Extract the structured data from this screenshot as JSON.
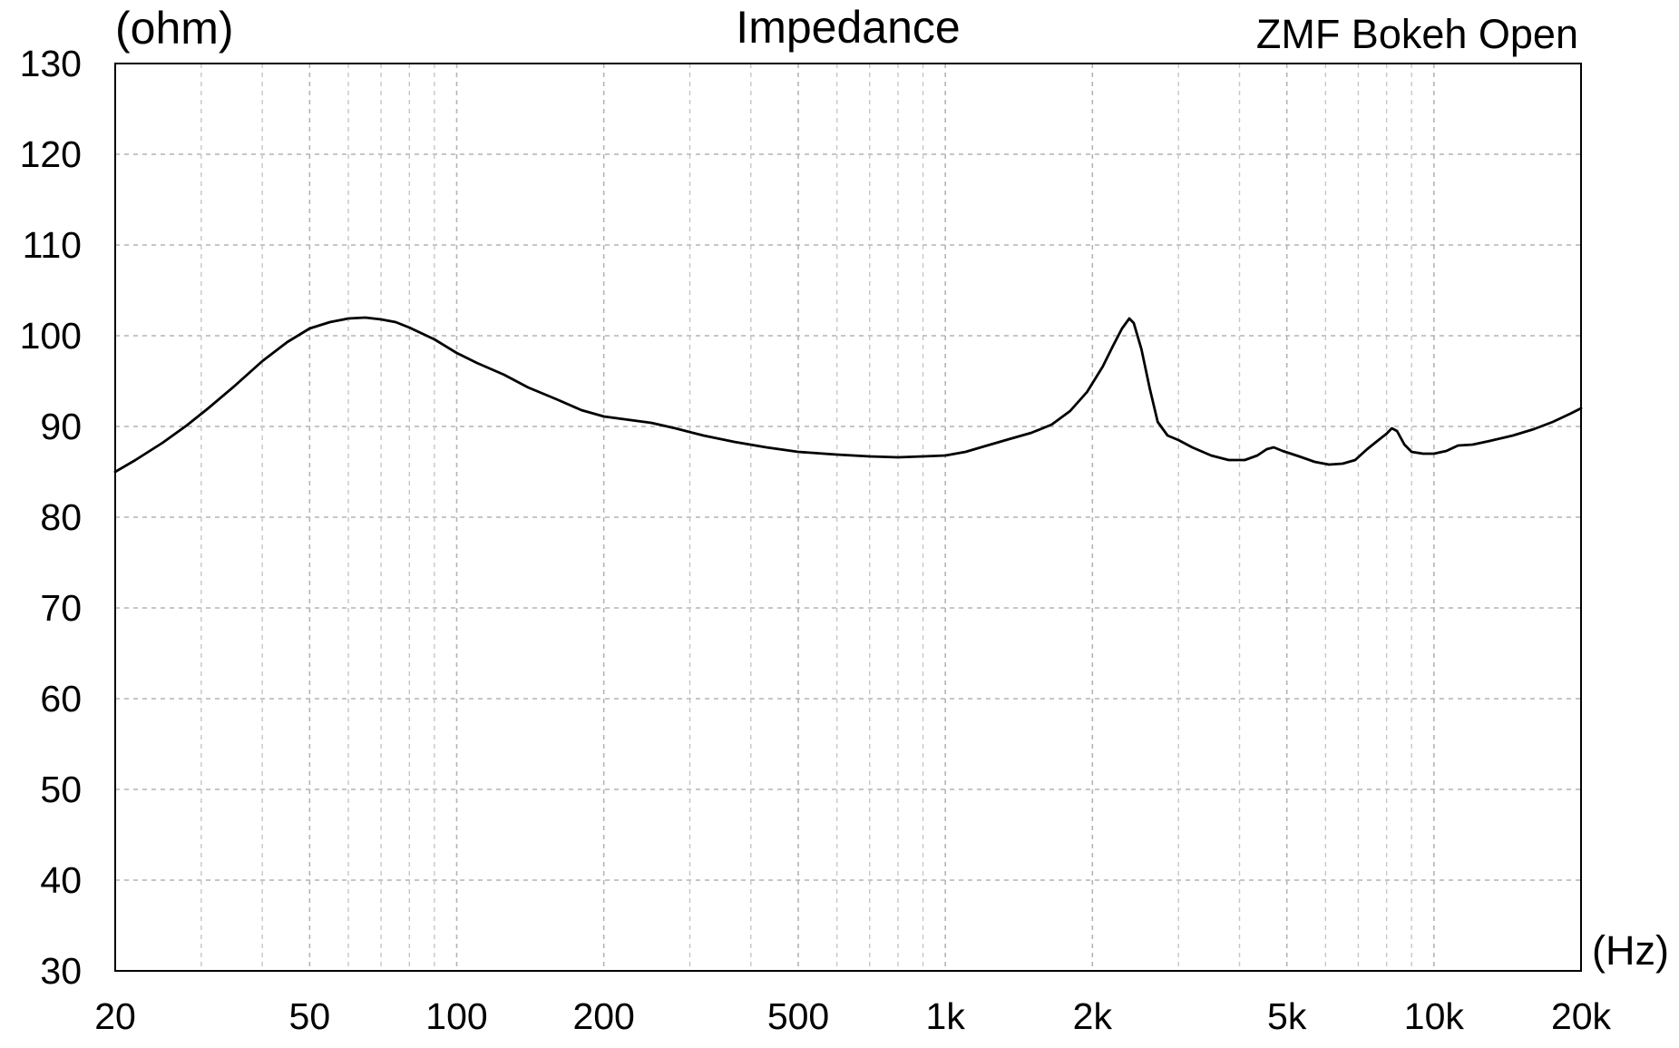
{
  "chart_data": {
    "type": "line",
    "title": "Impedance",
    "subtitle": "ZMF Bokeh Open",
    "ylabel": "(ohm)",
    "xlabel": "(Hz)",
    "x_scale": "log",
    "xlim": [
      20,
      20000
    ],
    "ylim": [
      30,
      130
    ],
    "grid": true,
    "y_ticks": [
      {
        "value": 130,
        "label": "130"
      },
      {
        "value": 120,
        "label": "120"
      },
      {
        "value": 110,
        "label": "110"
      },
      {
        "value": 100,
        "label": "100"
      },
      {
        "value": 90,
        "label": "90"
      },
      {
        "value": 80,
        "label": "80"
      },
      {
        "value": 70,
        "label": "70"
      },
      {
        "value": 60,
        "label": "60"
      },
      {
        "value": 50,
        "label": "50"
      },
      {
        "value": 40,
        "label": "40"
      },
      {
        "value": 30,
        "label": "30"
      }
    ],
    "x_ticks": [
      {
        "value": 20,
        "label": "20"
      },
      {
        "value": 50,
        "label": "50"
      },
      {
        "value": 100,
        "label": "100"
      },
      {
        "value": 200,
        "label": "200"
      },
      {
        "value": 500,
        "label": "500"
      },
      {
        "value": 1000,
        "label": "1k"
      },
      {
        "value": 2000,
        "label": "2k"
      },
      {
        "value": 5000,
        "label": "5k"
      },
      {
        "value": 10000,
        "label": "10k"
      },
      {
        "value": 20000,
        "label": "20k"
      }
    ],
    "x_minor_gridlines": [
      30,
      40,
      60,
      70,
      80,
      90,
      300,
      400,
      600,
      700,
      800,
      900,
      3000,
      4000,
      6000,
      7000,
      8000,
      9000
    ],
    "series": [
      {
        "color": "#000000",
        "points": [
          [
            20,
            85.0
          ],
          [
            22,
            86.3
          ],
          [
            25,
            88.2
          ],
          [
            28,
            90.1
          ],
          [
            31,
            92.0
          ],
          [
            35,
            94.4
          ],
          [
            40,
            97.2
          ],
          [
            45,
            99.3
          ],
          [
            50,
            100.8
          ],
          [
            55,
            101.5
          ],
          [
            60,
            101.9
          ],
          [
            65,
            102.0
          ],
          [
            70,
            101.8
          ],
          [
            75,
            101.5
          ],
          [
            80,
            100.9
          ],
          [
            90,
            99.6
          ],
          [
            100,
            98.1
          ],
          [
            110,
            97.0
          ],
          [
            125,
            95.7
          ],
          [
            140,
            94.3
          ],
          [
            160,
            93.0
          ],
          [
            180,
            91.8
          ],
          [
            200,
            91.1
          ],
          [
            220,
            90.8
          ],
          [
            250,
            90.4
          ],
          [
            280,
            89.8
          ],
          [
            320,
            89.0
          ],
          [
            370,
            88.3
          ],
          [
            430,
            87.7
          ],
          [
            500,
            87.2
          ],
          [
            600,
            86.9
          ],
          [
            700,
            86.7
          ],
          [
            800,
            86.6
          ],
          [
            900,
            86.7
          ],
          [
            1000,
            86.8
          ],
          [
            1100,
            87.2
          ],
          [
            1200,
            87.8
          ],
          [
            1350,
            88.6
          ],
          [
            1500,
            89.3
          ],
          [
            1650,
            90.2
          ],
          [
            1800,
            91.7
          ],
          [
            1950,
            93.8
          ],
          [
            2100,
            96.6
          ],
          [
            2200,
            98.8
          ],
          [
            2300,
            100.8
          ],
          [
            2380,
            101.9
          ],
          [
            2430,
            101.4
          ],
          [
            2520,
            98.5
          ],
          [
            2620,
            94.2
          ],
          [
            2720,
            90.5
          ],
          [
            2850,
            89.0
          ],
          [
            3000,
            88.5
          ],
          [
            3200,
            87.7
          ],
          [
            3500,
            86.8
          ],
          [
            3800,
            86.3
          ],
          [
            4100,
            86.3
          ],
          [
            4350,
            86.8
          ],
          [
            4550,
            87.5
          ],
          [
            4700,
            87.7
          ],
          [
            4900,
            87.3
          ],
          [
            5300,
            86.7
          ],
          [
            5700,
            86.1
          ],
          [
            6100,
            85.8
          ],
          [
            6500,
            85.9
          ],
          [
            6900,
            86.3
          ],
          [
            7300,
            87.5
          ],
          [
            7700,
            88.5
          ],
          [
            8000,
            89.2
          ],
          [
            8200,
            89.8
          ],
          [
            8400,
            89.5
          ],
          [
            8700,
            88.0
          ],
          [
            9000,
            87.2
          ],
          [
            9500,
            87.0
          ],
          [
            10000,
            87.0
          ],
          [
            10600,
            87.3
          ],
          [
            11200,
            87.9
          ],
          [
            12000,
            88.0
          ],
          [
            13000,
            88.4
          ],
          [
            14500,
            89.0
          ],
          [
            16000,
            89.7
          ],
          [
            17500,
            90.5
          ],
          [
            19000,
            91.4
          ],
          [
            20000,
            92.0
          ]
        ]
      }
    ]
  }
}
